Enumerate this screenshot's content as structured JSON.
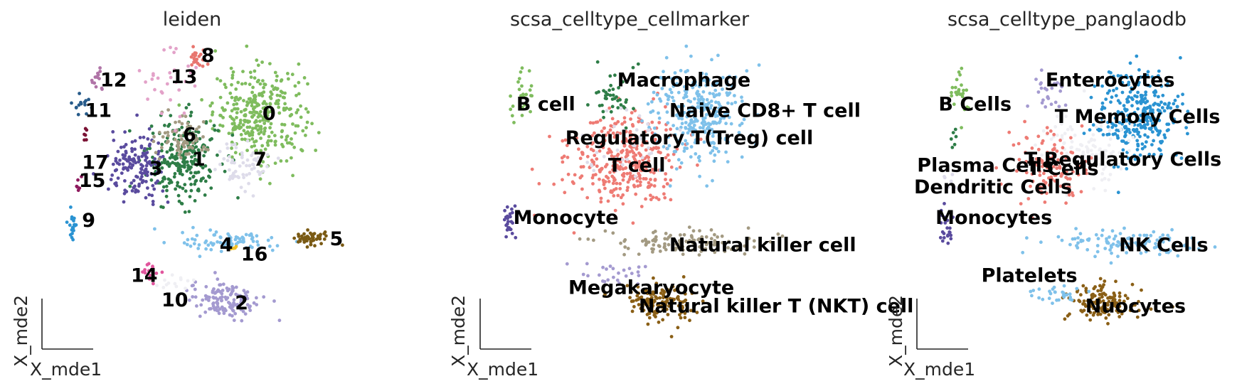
{
  "chart_data": [
    {
      "type": "scatter",
      "title": "leiden",
      "xlabel": "X_mde1",
      "ylabel": "X_mde2",
      "grid": false,
      "legend": "on data",
      "xlim": [
        0,
        100
      ],
      "ylim": [
        0,
        100
      ],
      "groups": [
        {
          "label": "0",
          "color": "#7fbc5e",
          "cx": 72,
          "cy": 78,
          "sx": 7.5,
          "sy": 7.5,
          "n": 320
        },
        {
          "label": "1",
          "color": "#2e7d47",
          "cx": 47,
          "cy": 63,
          "sx": 6,
          "sy": 7,
          "n": 240
        },
        {
          "label": "2",
          "color": "#a49ad0",
          "cx": 61,
          "cy": 17,
          "sx": 6,
          "sy": 3.2,
          "n": 130
        },
        {
          "label": "3",
          "color": "#5a4b9e",
          "cx": 32,
          "cy": 60,
          "sx": 4.5,
          "sy": 5.5,
          "n": 150
        },
        {
          "label": "4",
          "color": "#7fc1ea",
          "cx": 63,
          "cy": 36,
          "sx": 8,
          "sy": 1.6,
          "n": 80
        },
        {
          "label": "5",
          "color": "#7a5a14",
          "cx": 89,
          "cy": 37,
          "sx": 3,
          "sy": 1.2,
          "n": 50
        },
        {
          "label": "6",
          "color": "#a39a82",
          "cx": 47,
          "cy": 70,
          "sx": 4,
          "sy": 3.5,
          "n": 70
        },
        {
          "label": "7",
          "color": "#dedcea",
          "cx": 66,
          "cy": 62,
          "sx": 5,
          "sy": 4,
          "n": 60
        },
        {
          "label": "8",
          "color": "#e8766f",
          "cx": 52,
          "cy": 96,
          "sx": 1.5,
          "sy": 2,
          "n": 25
        },
        {
          "label": "9",
          "color": "#2a93d2",
          "cx": 11,
          "cy": 42,
          "sx": 1,
          "sy": 3.5,
          "n": 20
        },
        {
          "label": "10",
          "color": "#efeff3",
          "cx": 45,
          "cy": 22,
          "sx": 3,
          "sy": 1.6,
          "n": 15
        },
        {
          "label": "11",
          "color": "#275b8a",
          "cx": 14,
          "cy": 82,
          "sx": 1.5,
          "sy": 2,
          "n": 14
        },
        {
          "label": "12",
          "color": "#b074a7",
          "cx": 19,
          "cy": 89,
          "sx": 1.2,
          "sy": 2,
          "n": 14
        },
        {
          "label": "13",
          "color": "#e3a2c9",
          "cx": 41,
          "cy": 86,
          "sx": 6,
          "sy": 6,
          "n": 30
        },
        {
          "label": "14",
          "color": "#e1559d",
          "cx": 37,
          "cy": 26,
          "sx": 2,
          "sy": 2,
          "n": 15
        },
        {
          "label": "15",
          "color": "#8e1a5e",
          "cx": 13,
          "cy": 55,
          "sx": 0.6,
          "sy": 1.5,
          "n": 6
        },
        {
          "label": "16",
          "color": "#f2c026",
          "cx": 64,
          "cy": 34,
          "sx": 0.5,
          "sy": 0.5,
          "n": 4
        },
        {
          "label": "17",
          "color": "#7a1234",
          "cx": 15,
          "cy": 72,
          "sx": 0.5,
          "sy": 1.5,
          "n": 6
        }
      ],
      "annotations": [
        {
          "text": "0",
          "x": 73,
          "y": 78
        },
        {
          "text": "1",
          "x": 50,
          "y": 63
        },
        {
          "text": "2",
          "x": 64,
          "y": 16
        },
        {
          "text": "3",
          "x": 36,
          "y": 60
        },
        {
          "text": "4",
          "x": 59,
          "y": 35
        },
        {
          "text": "5",
          "x": 95,
          "y": 37
        },
        {
          "text": "6",
          "x": 47,
          "y": 71
        },
        {
          "text": "7",
          "x": 70,
          "y": 63
        },
        {
          "text": "8",
          "x": 53,
          "y": 97
        },
        {
          "text": "9",
          "x": 14,
          "y": 43
        },
        {
          "text": "10",
          "x": 40,
          "y": 17
        },
        {
          "text": "11",
          "x": 15,
          "y": 79
        },
        {
          "text": "12",
          "x": 20,
          "y": 89
        },
        {
          "text": "13",
          "x": 43,
          "y": 90
        },
        {
          "text": "14",
          "x": 30,
          "y": 25
        },
        {
          "text": "15",
          "x": 13,
          "y": 56
        },
        {
          "text": "16",
          "x": 66,
          "y": 32
        },
        {
          "text": "17",
          "x": 14,
          "y": 62
        }
      ]
    },
    {
      "type": "scatter",
      "title": "scsa_celltype_cellmarker",
      "xlabel": "X_mde1",
      "ylabel": "X_mde2",
      "grid": false,
      "legend": "on data",
      "xlim": [
        0,
        100
      ],
      "ylim": [
        0,
        100
      ],
      "groups": [
        {
          "label": "T cell",
          "color": "#ee7b74",
          "cx": 48,
          "cy": 63,
          "sx": 9,
          "sy": 8,
          "n": 340
        },
        {
          "label": "Naive CD8+ T cell",
          "color": "#7fc1ea",
          "cx": 72,
          "cy": 78,
          "sx": 7.5,
          "sy": 7.5,
          "n": 300
        },
        {
          "label": "Natural killer cell",
          "color": "#a39a82",
          "cx": 66,
          "cy": 36,
          "sx": 13,
          "sy": 2,
          "n": 110
        },
        {
          "label": "Natural killer T (NKT) cell",
          "color": "#8a5f16",
          "cx": 60,
          "cy": 16,
          "sx": 5.5,
          "sy": 3,
          "n": 130
        },
        {
          "label": "Megakaryocyte",
          "color": "#a49ad0",
          "cx": 44,
          "cy": 25,
          "sx": 6,
          "sy": 2.5,
          "n": 25
        },
        {
          "label": "Macrophage",
          "color": "#2e7d47",
          "cx": 45,
          "cy": 84,
          "sx": 4,
          "sy": 4,
          "n": 40
        },
        {
          "label": "B cell",
          "color": "#7fbc5e",
          "cx": 15,
          "cy": 84,
          "sx": 2,
          "sy": 5,
          "n": 25
        },
        {
          "label": "Regulatory T(Treg) cell",
          "color": "#dedcea",
          "cx": 48,
          "cy": 67,
          "sx": 8,
          "sy": 6,
          "n": 40
        },
        {
          "label": "Monocyte",
          "color": "#5a4b9e",
          "cx": 11,
          "cy": 42,
          "sx": 1.2,
          "sy": 4,
          "n": 25
        }
      ],
      "annotations": [
        {
          "text": "Macrophage",
          "x": 46,
          "y": 89
        },
        {
          "text": "B cell",
          "x": 13,
          "y": 81
        },
        {
          "text": "Naive CD8+ T cell",
          "x": 63,
          "y": 79
        },
        {
          "text": "Regulatory T(Treg) cell",
          "x": 29,
          "y": 70
        },
        {
          "text": "T cell",
          "x": 43,
          "y": 61
        },
        {
          "text": "Monocyte",
          "x": 12,
          "y": 44
        },
        {
          "text": "Natural killer cell",
          "x": 63,
          "y": 35
        },
        {
          "text": "Megakaryocyte",
          "x": 30,
          "y": 21
        },
        {
          "text": "Natural killer T (NKT) cell",
          "x": 53,
          "y": 15
        }
      ]
    },
    {
      "type": "scatter",
      "title": "scsa_celltype_panglaodb",
      "xlabel": "X_mde1",
      "ylabel": "X_mde2",
      "grid": false,
      "legend": "on data",
      "xlim": [
        0,
        100
      ],
      "ylim": [
        0,
        100
      ],
      "groups": [
        {
          "label": "T Memory Cells",
          "color": "#2a93d2",
          "cx": 74,
          "cy": 77,
          "sx": 7,
          "sy": 7.5,
          "n": 300
        },
        {
          "label": "T Regulatory Cells",
          "color": "#efeff3",
          "cx": 56,
          "cy": 66,
          "sx": 7,
          "sy": 6,
          "n": 120
        },
        {
          "label": "T Cells",
          "color": "#ee7b74",
          "cx": 44,
          "cy": 60,
          "sx": 6,
          "sy": 6,
          "n": 120
        },
        {
          "label": "NK Cells",
          "color": "#7fc1ea",
          "cx": 66,
          "cy": 36,
          "sx": 13,
          "sy": 2,
          "n": 110
        },
        {
          "label": "Nuocytes",
          "color": "#8a5f16",
          "cx": 62,
          "cy": 16,
          "sx": 5.5,
          "sy": 3,
          "n": 130
        },
        {
          "label": "Platelets",
          "color": "#7fc1ea",
          "cx": 46,
          "cy": 19,
          "sx": 5,
          "sy": 2,
          "n": 30
        },
        {
          "label": "Enterocytes",
          "color": "#a49ad0",
          "cx": 45,
          "cy": 84,
          "sx": 4,
          "sy": 4,
          "n": 25
        },
        {
          "label": "B Cells",
          "color": "#7fbc5e",
          "cx": 15,
          "cy": 84,
          "sx": 2,
          "sy": 5,
          "n": 25
        },
        {
          "label": "Plasma Cells",
          "color": "#2e7d47",
          "cx": 13,
          "cy": 70,
          "sx": 0.5,
          "sy": 1.5,
          "n": 6
        },
        {
          "label": "Dendritic Cells",
          "color": "#dedcea",
          "cx": 12,
          "cy": 55,
          "sx": 1,
          "sy": 2,
          "n": 8
        },
        {
          "label": "Monocytes",
          "color": "#5a4b9e",
          "cx": 11,
          "cy": 42,
          "sx": 1.2,
          "sy": 4,
          "n": 25
        }
      ],
      "annotations": [
        {
          "text": "Enterocytes",
          "x": 43,
          "y": 89
        },
        {
          "text": "B Cells",
          "x": 8,
          "y": 81
        },
        {
          "text": "T Memory Cells",
          "x": 46,
          "y": 77
        },
        {
          "text": "T Regulatory Cells",
          "x": 36,
          "y": 63
        },
        {
          "text": "T Cells",
          "x": 37,
          "y": 60
        },
        {
          "text": "Plasma Cells",
          "x": 1,
          "y": 61
        },
        {
          "text": "Dendritic Cells",
          "x": 0,
          "y": 54
        },
        {
          "text": "Monocytes",
          "x": 7,
          "y": 44
        },
        {
          "text": "NK Cells",
          "x": 67,
          "y": 35
        },
        {
          "text": "Platelets",
          "x": 22,
          "y": 25
        },
        {
          "text": "Nuocytes",
          "x": 56,
          "y": 15
        }
      ]
    }
  ]
}
